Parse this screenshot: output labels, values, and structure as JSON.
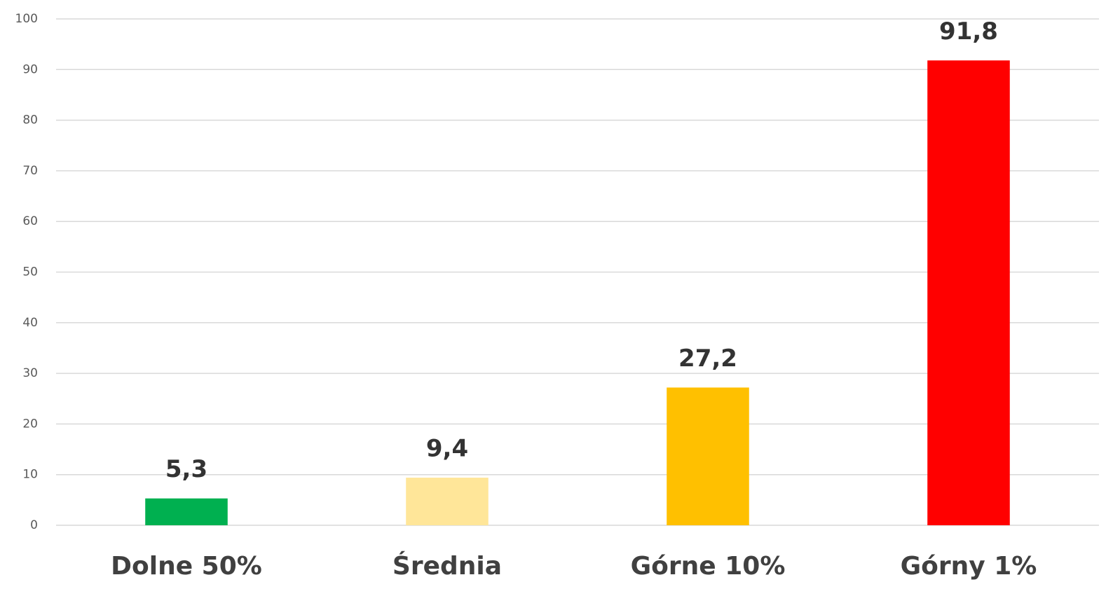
{
  "chart_data": {
    "type": "bar",
    "categories": [
      "Dolne 50%",
      "Średnia",
      "Górne 10%",
      "Górny 1%"
    ],
    "values": [
      5.3,
      9.4,
      27.2,
      91.8
    ],
    "value_labels": [
      "5,3",
      "9,4",
      "27,2",
      "91,8"
    ],
    "colors": [
      "#00b050",
      "#ffe699",
      "#ffc000",
      "#ff0000"
    ],
    "ylim": [
      0,
      100
    ],
    "yticks": [
      0,
      10,
      20,
      30,
      40,
      50,
      60,
      70,
      80,
      90,
      100
    ],
    "grid": true
  }
}
